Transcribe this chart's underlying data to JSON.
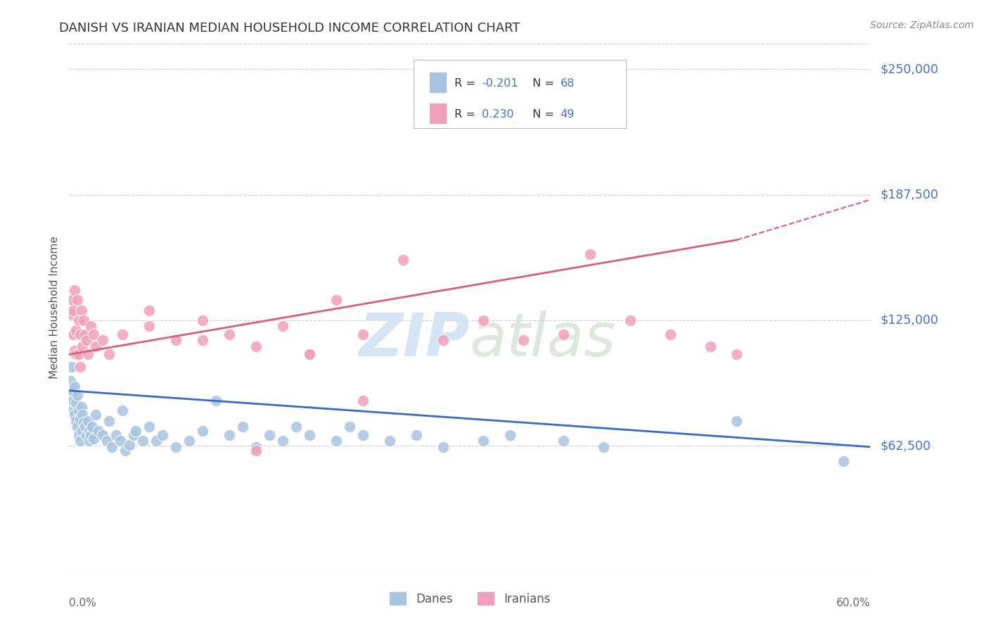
{
  "title": "DANISH VS IRANIAN MEDIAN HOUSEHOLD INCOME CORRELATION CHART",
  "source": "Source: ZipAtlas.com",
  "ylabel": "Median Household Income",
  "ytick_labels": [
    "$62,500",
    "$125,000",
    "$187,500",
    "$250,000"
  ],
  "ytick_values": [
    62500,
    125000,
    187500,
    250000
  ],
  "ymin": 0,
  "ymax": 262500,
  "xmin": 0.0,
  "xmax": 0.6,
  "background_color": "#ffffff",
  "grid_color": "#cccccc",
  "dane_color": "#a8c4e0",
  "iranian_color": "#f0a0b8",
  "dane_line_color": "#3a6bbf",
  "iranian_line_color": "#d4607a",
  "axis_label_color": "#4472c4",
  "watermark_color": "#d5e5f5",
  "title_color": "#333333",
  "title_fontsize": 13,
  "danes_x": [
    0.001,
    0.002,
    0.002,
    0.003,
    0.003,
    0.003,
    0.004,
    0.004,
    0.005,
    0.005,
    0.006,
    0.006,
    0.007,
    0.007,
    0.008,
    0.008,
    0.009,
    0.01,
    0.01,
    0.011,
    0.012,
    0.013,
    0.014,
    0.015,
    0.015,
    0.016,
    0.017,
    0.018,
    0.02,
    0.022,
    0.025,
    0.028,
    0.03,
    0.032,
    0.035,
    0.038,
    0.04,
    0.042,
    0.045,
    0.048,
    0.05,
    0.055,
    0.06,
    0.065,
    0.07,
    0.08,
    0.09,
    0.1,
    0.11,
    0.12,
    0.13,
    0.14,
    0.15,
    0.16,
    0.17,
    0.18,
    0.2,
    0.21,
    0.22,
    0.24,
    0.26,
    0.28,
    0.31,
    0.33,
    0.37,
    0.4,
    0.5,
    0.58
  ],
  "danes_y": [
    95000,
    102000,
    88000,
    85000,
    90000,
    80000,
    92000,
    78000,
    84000,
    75000,
    88000,
    72000,
    80000,
    68000,
    76000,
    65000,
    82000,
    78000,
    70000,
    74000,
    72000,
    68000,
    75000,
    70000,
    65000,
    68000,
    72000,
    66000,
    78000,
    70000,
    68000,
    65000,
    75000,
    62000,
    68000,
    65000,
    80000,
    60000,
    63000,
    68000,
    70000,
    65000,
    72000,
    65000,
    68000,
    62000,
    65000,
    70000,
    85000,
    68000,
    72000,
    62000,
    68000,
    65000,
    72000,
    68000,
    65000,
    72000,
    68000,
    65000,
    68000,
    62000,
    65000,
    68000,
    65000,
    62000,
    75000,
    55000
  ],
  "iranians_x": [
    0.001,
    0.002,
    0.003,
    0.003,
    0.004,
    0.004,
    0.005,
    0.005,
    0.006,
    0.007,
    0.007,
    0.008,
    0.008,
    0.009,
    0.01,
    0.011,
    0.012,
    0.013,
    0.014,
    0.016,
    0.018,
    0.02,
    0.025,
    0.03,
    0.04,
    0.06,
    0.08,
    0.1,
    0.12,
    0.14,
    0.16,
    0.18,
    0.2,
    0.22,
    0.25,
    0.28,
    0.31,
    0.34,
    0.37,
    0.39,
    0.42,
    0.45,
    0.48,
    0.5,
    0.22,
    0.14,
    0.06,
    0.1,
    0.18
  ],
  "iranians_y": [
    128000,
    135000,
    130000,
    118000,
    140000,
    110000,
    120000,
    108000,
    135000,
    125000,
    108000,
    118000,
    102000,
    130000,
    112000,
    125000,
    118000,
    115000,
    108000,
    122000,
    118000,
    112000,
    115000,
    108000,
    118000,
    122000,
    115000,
    125000,
    118000,
    112000,
    122000,
    108000,
    135000,
    118000,
    155000,
    115000,
    125000,
    115000,
    118000,
    158000,
    125000,
    118000,
    112000,
    108000,
    85000,
    60000,
    130000,
    115000,
    108000
  ]
}
